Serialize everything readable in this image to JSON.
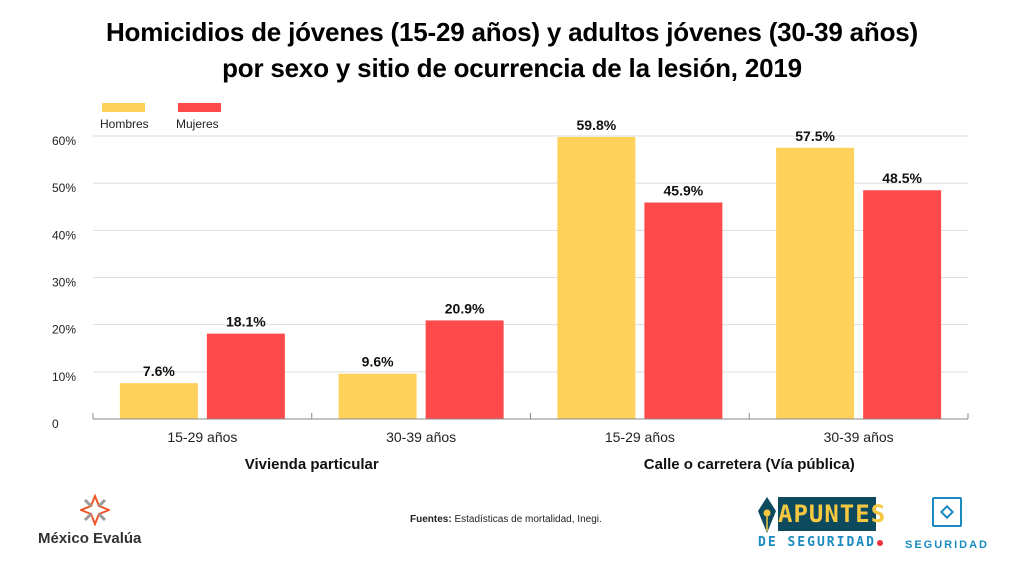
{
  "title_line1": "Homicidios de jóvenes (15-29 años) y adultos jóvenes (30-39 años)",
  "title_line2": "por sexo y sitio de ocurrencia de la lesión, 2019",
  "colors": {
    "hombres": "#fed15a",
    "mujeres": "#ff4a4c",
    "grid": "#dddddd",
    "axis": "#888888"
  },
  "chart_data": {
    "type": "bar",
    "title": "Homicidios de jóvenes (15-29 años) y adultos jóvenes (30-39 años) por sexo y sitio de ocurrencia de la lesión, 2019",
    "categories": [
      "15-29 años",
      "30-39 años",
      "15-29 años",
      "30-39 años"
    ],
    "groups": [
      {
        "label": "Vivienda particular",
        "categories": [
          0,
          1
        ]
      },
      {
        "label": "Calle o carretera (Vía pública)",
        "categories": [
          2,
          3
        ]
      }
    ],
    "series": [
      {
        "name": "Hombres",
        "values": [
          7.6,
          9.6,
          59.8,
          57.5
        ],
        "labels": [
          "7.6%",
          "9.6%",
          "59.8%",
          "57.5%"
        ]
      },
      {
        "name": "Mujeres",
        "values": [
          18.1,
          20.9,
          45.9,
          48.5
        ],
        "labels": [
          "18.1%",
          "20.9%",
          "45.9%",
          "48.5%"
        ]
      }
    ],
    "yticks": [
      0,
      10,
      20,
      30,
      40,
      50,
      60
    ],
    "ytick_labels": [
      "0",
      "10%",
      "20%",
      "30%",
      "40%",
      "50%",
      "60%"
    ],
    "ylim": [
      0,
      60
    ],
    "xlabel": "",
    "ylabel": "",
    "grid": true,
    "legend_position": "top-left"
  },
  "footer": {
    "source_label": "Fuentes:",
    "source_text": " Estadísticas de mortalidad, Inegi.",
    "logo_mexico_evalua": "México Evalúa",
    "logo_apuntes_top": "APUNTES",
    "logo_apuntes_bottom": "DE SEGURIDAD",
    "logo_seguridad": "SEGURIDAD"
  }
}
